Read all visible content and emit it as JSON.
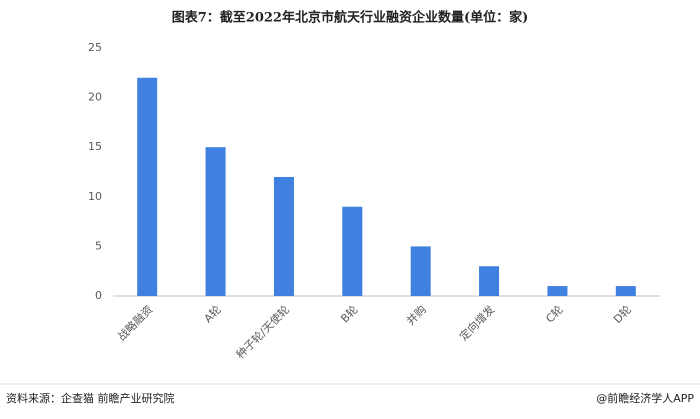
{
  "chart_data": {
    "type": "bar",
    "title": "图表7：截至2022年北京市航天行业融资企业数量(单位：家)",
    "categories": [
      "战略融资",
      "A轮",
      "种子轮/天使轮",
      "B轮",
      "并购",
      "定向增发",
      "C轮",
      "D轮"
    ],
    "values": [
      22,
      15,
      12,
      9,
      5,
      3,
      1,
      1
    ],
    "color": "#3f80e0",
    "ylim": [
      0,
      25
    ],
    "yticks": [
      0,
      5,
      10,
      15,
      20,
      25
    ],
    "grid": false,
    "source": "资料来源：企查猫 前瞻产业研究院",
    "credit": "@前瞻经济学人APP"
  }
}
